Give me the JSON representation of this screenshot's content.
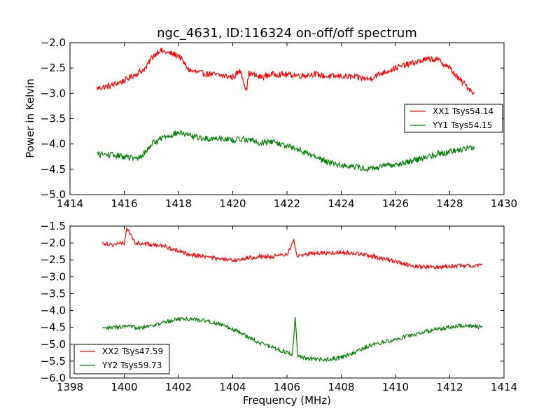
{
  "figure": {
    "title": "ngc_4631, ID:116324 on-off/off spectrum",
    "ylabel": "Power in Kelvin",
    "xlabel": "Frequency (MHz)"
  },
  "chart_data": [
    {
      "type": "line",
      "title": "ngc_4631, ID:116324 on-off/off spectrum",
      "ylabel": "Power in Kelvin",
      "xlabel": "",
      "xlim": [
        1414,
        1430
      ],
      "ylim": [
        -5.0,
        -2.0
      ],
      "xticks": [
        1414,
        1416,
        1418,
        1420,
        1422,
        1424,
        1426,
        1428,
        1430
      ],
      "yticks": [
        -5.0,
        -4.5,
        -4.0,
        -3.5,
        -3.0,
        -2.5,
        -2.0
      ],
      "xtick_labels": [
        "1414",
        "1416",
        "1418",
        "1420",
        "1422",
        "1424",
        "1426",
        "1428",
        "1430"
      ],
      "ytick_labels": [
        "−5.0",
        "−4.5",
        "−4.0",
        "−3.5",
        "−3.0",
        "−2.5",
        "−2.0"
      ],
      "grid": false,
      "legend_position": "right",
      "series": [
        {
          "name": "XX1 Tsys54.14",
          "color": "#ff0000",
          "x": [
            1415.0,
            1415.5,
            1416.0,
            1416.5,
            1416.8,
            1417.0,
            1417.3,
            1417.6,
            1418.0,
            1418.4,
            1418.8,
            1419.2,
            1419.6,
            1420.0,
            1420.3,
            1420.5,
            1420.6,
            1421.0,
            1421.5,
            1422.0,
            1422.5,
            1423.0,
            1423.5,
            1424.0,
            1424.5,
            1425.0,
            1425.5,
            1426.0,
            1426.5,
            1427.0,
            1427.3,
            1427.6,
            1428.0,
            1428.3,
            1428.6,
            1428.9
          ],
          "y": [
            -2.9,
            -2.85,
            -2.75,
            -2.6,
            -2.5,
            -2.3,
            -2.15,
            -2.2,
            -2.25,
            -2.55,
            -2.6,
            -2.62,
            -2.65,
            -2.68,
            -2.55,
            -2.95,
            -2.6,
            -2.68,
            -2.62,
            -2.63,
            -2.65,
            -2.62,
            -2.67,
            -2.66,
            -2.68,
            -2.72,
            -2.6,
            -2.5,
            -2.42,
            -2.35,
            -2.32,
            -2.35,
            -2.5,
            -2.7,
            -2.85,
            -3.0
          ]
        },
        {
          "name": "YY1 Tsys54.15",
          "color": "#008000",
          "x": [
            1415.0,
            1415.5,
            1416.0,
            1416.5,
            1416.8,
            1417.0,
            1417.5,
            1418.0,
            1418.5,
            1419.0,
            1419.5,
            1420.0,
            1420.5,
            1421.0,
            1421.5,
            1422.0,
            1422.5,
            1423.0,
            1423.5,
            1424.0,
            1424.5,
            1425.0,
            1425.5,
            1426.0,
            1426.5,
            1427.0,
            1427.5,
            1428.0,
            1428.5,
            1428.9
          ],
          "y": [
            -4.2,
            -4.22,
            -4.25,
            -4.3,
            -4.15,
            -4.0,
            -3.85,
            -3.78,
            -3.85,
            -3.9,
            -3.88,
            -3.92,
            -3.9,
            -3.98,
            -3.95,
            -4.05,
            -4.12,
            -4.25,
            -4.35,
            -4.42,
            -4.45,
            -4.5,
            -4.45,
            -4.4,
            -4.35,
            -4.28,
            -4.2,
            -4.15,
            -4.1,
            -4.05
          ]
        }
      ]
    },
    {
      "type": "line",
      "title": "",
      "ylabel": "",
      "xlabel": "Frequency (MHz)",
      "xlim": [
        1398,
        1414
      ],
      "ylim": [
        -6.0,
        -1.5
      ],
      "xticks": [
        1398,
        1400,
        1402,
        1404,
        1406,
        1408,
        1410,
        1412,
        1414
      ],
      "yticks": [
        -6.0,
        -5.5,
        -5.0,
        -4.5,
        -4.0,
        -3.5,
        -3.0,
        -2.5,
        -2.0,
        -1.5
      ],
      "xtick_labels": [
        "1398",
        "1400",
        "1402",
        "1404",
        "1406",
        "1408",
        "1410",
        "1412",
        "1414"
      ],
      "ytick_labels": [
        "−6.0",
        "−5.5",
        "−5.0",
        "−4.5",
        "−4.0",
        "−3.5",
        "−3.0",
        "−2.5",
        "−2.0",
        "−1.5"
      ],
      "grid": false,
      "legend_position": "lower-left",
      "series": [
        {
          "name": "XX2 Tsys47.59",
          "color": "#ff0000",
          "x": [
            1399.2,
            1399.6,
            1400.0,
            1400.1,
            1400.4,
            1401.0,
            1401.5,
            1402.0,
            1402.5,
            1403.0,
            1403.5,
            1404.0,
            1404.5,
            1405.0,
            1405.5,
            1406.0,
            1406.25,
            1406.35,
            1406.6,
            1407.0,
            1407.5,
            1408.0,
            1408.5,
            1409.0,
            1409.5,
            1410.0,
            1410.5,
            1411.0,
            1411.5,
            1412.0,
            1412.5,
            1413.2
          ],
          "y": [
            -2.0,
            -2.05,
            -2.0,
            -1.55,
            -2.0,
            -2.05,
            -2.1,
            -2.25,
            -2.35,
            -2.4,
            -2.48,
            -2.52,
            -2.45,
            -2.4,
            -2.4,
            -2.35,
            -1.9,
            -2.38,
            -2.35,
            -2.3,
            -2.3,
            -2.28,
            -2.3,
            -2.38,
            -2.45,
            -2.55,
            -2.65,
            -2.7,
            -2.72,
            -2.68,
            -2.68,
            -2.65
          ]
        },
        {
          "name": "YY2 Tsys59.73",
          "color": "#008000",
          "x": [
            1399.2,
            1399.6,
            1400.0,
            1400.5,
            1401.0,
            1401.5,
            1402.0,
            1402.5,
            1403.0,
            1403.5,
            1404.0,
            1404.5,
            1405.0,
            1405.5,
            1406.0,
            1406.2,
            1406.3,
            1406.4,
            1406.6,
            1407.0,
            1407.5,
            1408.0,
            1408.5,
            1409.0,
            1409.5,
            1410.0,
            1410.5,
            1411.0,
            1411.5,
            1412.0,
            1412.5,
            1413.2
          ],
          "y": [
            -4.55,
            -4.5,
            -4.48,
            -4.5,
            -4.45,
            -4.35,
            -4.25,
            -4.25,
            -4.3,
            -4.4,
            -4.55,
            -4.75,
            -4.95,
            -5.1,
            -5.25,
            -5.3,
            -4.25,
            -5.35,
            -5.4,
            -5.45,
            -5.45,
            -5.4,
            -5.25,
            -5.05,
            -4.95,
            -4.85,
            -4.75,
            -4.65,
            -4.55,
            -4.5,
            -4.45,
            -4.5
          ]
        }
      ]
    }
  ]
}
